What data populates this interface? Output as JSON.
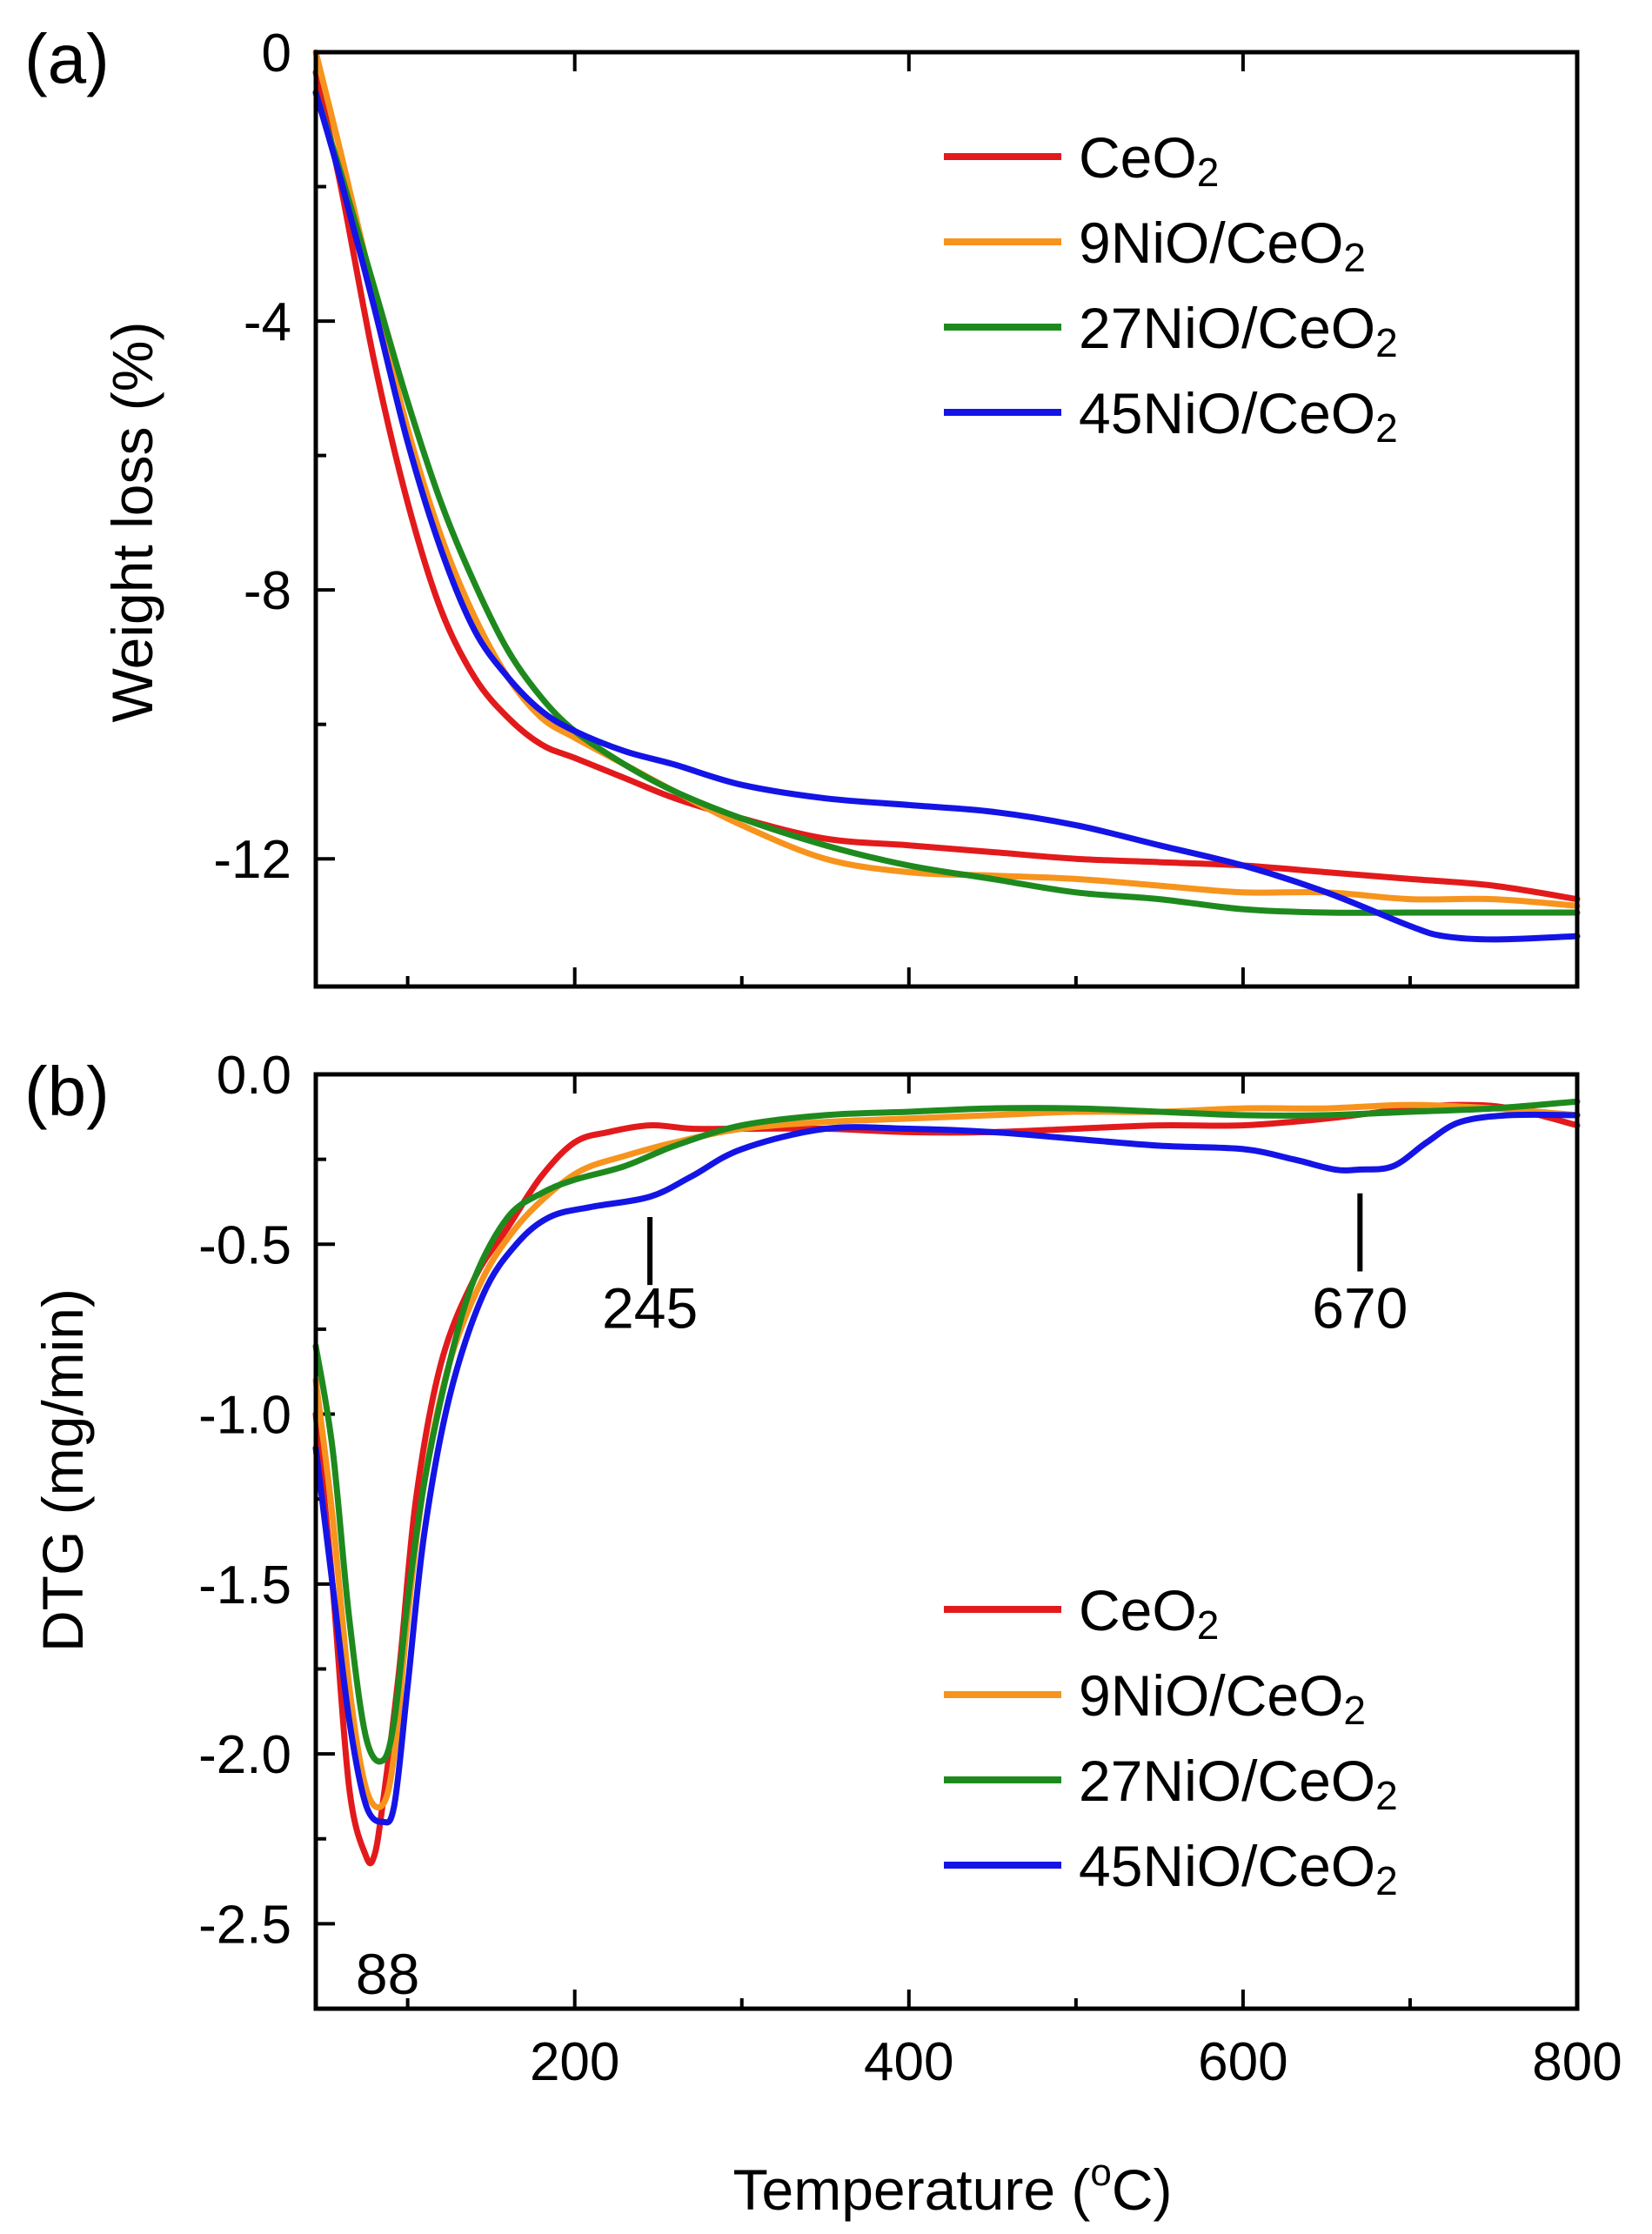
{
  "colors": {
    "CeO2": "#e31a1c",
    "9NiO/CeO2": "#f7941d",
    "27NiO/CeO2": "#1e8a1e",
    "45NiO/CeO2": "#1414e6"
  },
  "xlabel_main": "Temperature (",
  "xlabel_sup": "o",
  "xlabel_end": "C)",
  "chart_data": [
    {
      "type": "line",
      "panel_label": "(a)",
      "title": "",
      "xlabel": "Temperature (oC)",
      "ylabel": "Weight loss (%)",
      "xlim": [
        45,
        800
      ],
      "ylim": [
        -13.9,
        0
      ],
      "xticks": [
        200,
        400,
        600,
        800
      ],
      "xticks_minor": [
        100,
        300,
        500,
        700
      ],
      "yticks": [
        0,
        -4,
        -8,
        -12
      ],
      "yticks_minor": [
        -2,
        -6,
        -10
      ],
      "legend_position": "top-right",
      "legend": [
        "CeO2",
        "9NiO/CeO2",
        "27NiO/CeO2",
        "45NiO/CeO2"
      ],
      "series": [
        {
          "name": "CeO2",
          "x": [
            45,
            60,
            80,
            100,
            120,
            140,
            160,
            180,
            200,
            230,
            260,
            300,
            350,
            400,
            450,
            500,
            550,
            600,
            650,
            700,
            750,
            800
          ],
          "y": [
            -0.3,
            -2.0,
            -4.6,
            -6.7,
            -8.3,
            -9.3,
            -9.9,
            -10.3,
            -10.5,
            -10.8,
            -11.1,
            -11.4,
            -11.7,
            -11.8,
            -11.9,
            -12.0,
            -12.05,
            -12.1,
            -12.2,
            -12.3,
            -12.4,
            -12.6
          ]
        },
        {
          "name": "9NiO/CeO2",
          "x": [
            45,
            60,
            80,
            100,
            120,
            140,
            160,
            180,
            200,
            230,
            260,
            300,
            350,
            400,
            450,
            500,
            550,
            600,
            650,
            700,
            750,
            800
          ],
          "y": [
            0.0,
            -1.5,
            -3.6,
            -5.6,
            -7.2,
            -8.4,
            -9.3,
            -9.9,
            -10.2,
            -10.6,
            -11.0,
            -11.5,
            -12.0,
            -12.2,
            -12.25,
            -12.3,
            -12.4,
            -12.5,
            -12.5,
            -12.6,
            -12.6,
            -12.7
          ]
        },
        {
          "name": "27NiO/CeO2",
          "x": [
            45,
            60,
            80,
            100,
            120,
            140,
            160,
            180,
            200,
            230,
            260,
            300,
            350,
            400,
            450,
            500,
            550,
            600,
            650,
            700,
            750,
            800
          ],
          "y": [
            -0.6,
            -1.8,
            -3.5,
            -5.2,
            -6.7,
            -7.9,
            -8.9,
            -9.6,
            -10.1,
            -10.6,
            -11.0,
            -11.4,
            -11.8,
            -12.1,
            -12.3,
            -12.5,
            -12.6,
            -12.75,
            -12.8,
            -12.8,
            -12.8,
            -12.8
          ]
        },
        {
          "name": "45NiO/CeO2",
          "x": [
            45,
            60,
            80,
            100,
            120,
            140,
            160,
            180,
            200,
            230,
            260,
            300,
            350,
            400,
            450,
            500,
            550,
            600,
            650,
            700,
            720,
            750,
            800
          ],
          "y": [
            -0.6,
            -1.9,
            -3.8,
            -5.8,
            -7.4,
            -8.6,
            -9.3,
            -9.8,
            -10.1,
            -10.4,
            -10.6,
            -10.9,
            -11.1,
            -11.2,
            -11.3,
            -11.5,
            -11.8,
            -12.1,
            -12.5,
            -13.0,
            -13.15,
            -13.2,
            -13.15
          ]
        }
      ]
    },
    {
      "type": "line",
      "panel_label": "(b)",
      "title": "",
      "xlabel": "Temperature (oC)",
      "ylabel": "DTG (mg/min)",
      "xlim": [
        45,
        800
      ],
      "ylim": [
        -2.75,
        0.0
      ],
      "xticks": [
        200,
        400,
        600,
        800
      ],
      "xticks_minor": [
        100,
        300,
        500,
        700
      ],
      "yticks": [
        0.0,
        -0.5,
        -1.0,
        -1.5,
        -2.0,
        -2.5
      ],
      "yticks_minor": [
        -0.25,
        -0.75,
        -1.25,
        -1.75,
        -2.25
      ],
      "legend_position": "bottom-right",
      "legend": [
        "CeO2",
        "9NiO/CeO2",
        "27NiO/CeO2",
        "45NiO/CeO2"
      ],
      "annotations": [
        {
          "text": "88",
          "x": 88,
          "y": -2.65,
          "marker": false
        },
        {
          "text": "245",
          "x": 245,
          "y": -0.69,
          "marker": true,
          "marker_y": [
            -0.42,
            -0.62
          ]
        },
        {
          "text": "670",
          "x": 670,
          "y": -0.69,
          "marker": true,
          "marker_y": [
            -0.35,
            -0.58
          ]
        }
      ],
      "series": [
        {
          "name": "CeO2",
          "x": [
            45,
            55,
            65,
            75,
            80,
            85,
            95,
            105,
            120,
            140,
            160,
            180,
            200,
            220,
            245,
            270,
            300,
            350,
            400,
            450,
            500,
            550,
            600,
            650,
            700,
            730,
            760,
            800
          ],
          "y": [
            -1.0,
            -1.5,
            -2.1,
            -2.3,
            -2.3,
            -2.15,
            -1.75,
            -1.25,
            -0.85,
            -0.6,
            -0.45,
            -0.3,
            -0.2,
            -0.17,
            -0.15,
            -0.16,
            -0.16,
            -0.16,
            -0.17,
            -0.17,
            -0.16,
            -0.15,
            -0.15,
            -0.13,
            -0.1,
            -0.09,
            -0.1,
            -0.15
          ]
        },
        {
          "name": "9NiO/CeO2",
          "x": [
            45,
            55,
            65,
            75,
            85,
            92,
            100,
            110,
            125,
            145,
            165,
            185,
            205,
            230,
            260,
            300,
            350,
            400,
            450,
            500,
            550,
            600,
            650,
            700,
            750,
            800
          ],
          "y": [
            -0.9,
            -1.3,
            -1.8,
            -2.1,
            -2.15,
            -2.0,
            -1.6,
            -1.2,
            -0.85,
            -0.6,
            -0.45,
            -0.35,
            -0.28,
            -0.24,
            -0.2,
            -0.16,
            -0.14,
            -0.13,
            -0.12,
            -0.11,
            -0.11,
            -0.1,
            -0.1,
            -0.09,
            -0.1,
            -0.12
          ]
        },
        {
          "name": "27NiO/CeO2",
          "x": [
            45,
            55,
            65,
            75,
            85,
            92,
            100,
            110,
            125,
            140,
            160,
            180,
            200,
            230,
            260,
            300,
            350,
            400,
            450,
            500,
            550,
            600,
            650,
            700,
            750,
            800
          ],
          "y": [
            -0.8,
            -1.1,
            -1.6,
            -1.95,
            -2.02,
            -1.9,
            -1.55,
            -1.2,
            -0.85,
            -0.6,
            -0.42,
            -0.35,
            -0.31,
            -0.27,
            -0.21,
            -0.15,
            -0.12,
            -0.11,
            -0.1,
            -0.1,
            -0.11,
            -0.12,
            -0.12,
            -0.11,
            -0.1,
            -0.08
          ]
        },
        {
          "name": "45NiO/CeO2",
          "x": [
            45,
            55,
            65,
            75,
            85,
            92,
            100,
            110,
            125,
            145,
            165,
            185,
            210,
            245,
            270,
            300,
            350,
            400,
            450,
            500,
            550,
            600,
            630,
            655,
            670,
            690,
            710,
            730,
            760,
            800
          ],
          "y": [
            -1.1,
            -1.5,
            -1.9,
            -2.15,
            -2.2,
            -2.15,
            -1.8,
            -1.35,
            -0.95,
            -0.65,
            -0.5,
            -0.42,
            -0.39,
            -0.36,
            -0.3,
            -0.22,
            -0.16,
            -0.16,
            -0.17,
            -0.19,
            -0.21,
            -0.22,
            -0.25,
            -0.28,
            -0.28,
            -0.27,
            -0.2,
            -0.14,
            -0.12,
            -0.12
          ]
        }
      ]
    }
  ]
}
